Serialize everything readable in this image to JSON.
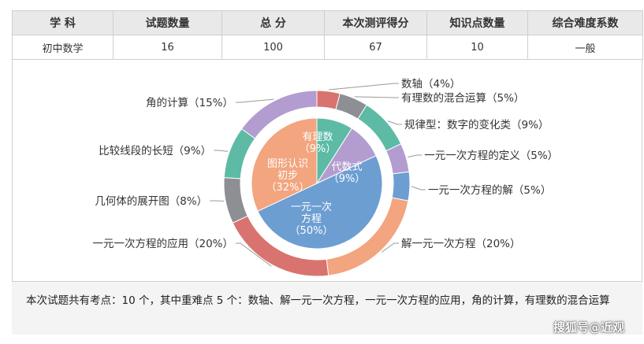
{
  "table": {
    "headers": [
      "学 科",
      "试题数量",
      "总 分",
      "本次测评得分",
      "知识点数量",
      "综合难度系数"
    ],
    "row": [
      "初中数学",
      "16",
      "100",
      "67",
      "10",
      "一般"
    ]
  },
  "chart_data": [
    {
      "type": "pie",
      "ring": "outer",
      "slices": [
        {
          "label": "数轴（4%）",
          "value": 4,
          "color": "#d9736f"
        },
        {
          "label": "有理数的混合运算（5%）",
          "value": 5,
          "color": "#8e8e95"
        },
        {
          "label": "规律型：数字的变化类（9%）",
          "value": 9,
          "color": "#5dbba5"
        },
        {
          "label": "一元一次方程的定义（5%）",
          "value": 5,
          "color": "#b39ccf"
        },
        {
          "label": "一元一次方程的解（5%）",
          "value": 5,
          "color": "#6d9ed2"
        },
        {
          "label": "解一元一次方程（20%）",
          "value": 20,
          "color": "#f2a57e"
        },
        {
          "label": "一元一次方程的应用（20%）",
          "value": 20,
          "color": "#d9736f"
        },
        {
          "label": "几何体的展开图（8%）",
          "value": 8,
          "color": "#8e8e95"
        },
        {
          "label": "比较线段的长短（9%）",
          "value": 9,
          "color": "#5dbba5"
        },
        {
          "label": "角的计算（15%）",
          "value": 15,
          "color": "#b39ccf"
        }
      ]
    },
    {
      "type": "pie",
      "ring": "inner",
      "slices": [
        {
          "name": "有理数",
          "pct": "（9%）",
          "value": 9,
          "color": "#5dbba5"
        },
        {
          "name": "代数式",
          "pct": "（9%）",
          "value": 9,
          "color": "#b39ccf"
        },
        {
          "name": "一元一次方程",
          "pct": "（50%）",
          "value": 50,
          "color": "#6d9ed2"
        },
        {
          "name": "图形认识初步",
          "pct": "（32%）",
          "value": 32,
          "color": "#f2a57e"
        }
      ]
    }
  ],
  "note": "本次试题共有考点：10 个，其中重难点 5 个：数轴、解一元一次方程，一元一次方程的应用，角的计算，有理数的混合运算",
  "watermark": "搜狐号@近观"
}
